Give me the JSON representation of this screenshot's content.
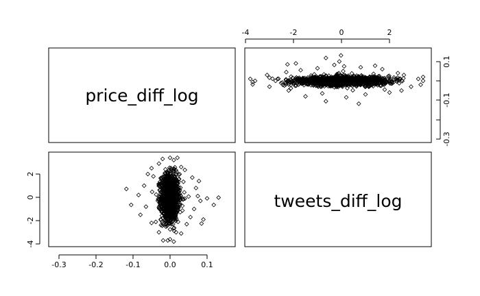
{
  "chart_data": {
    "type": "scatter",
    "title": "",
    "layout": "pairs-matrix",
    "variables": [
      "price_diff_log",
      "tweets_diff_log"
    ],
    "axes": {
      "price_diff_log": {
        "range": [
          -0.3,
          0.1
        ],
        "ticks": [
          -0.3,
          -0.2,
          -0.1,
          0.0,
          0.1
        ],
        "tick_labels": [
          "-0.3",
          "-0.2",
          "-0.1",
          "0.0",
          "0.1"
        ]
      },
      "tweets_diff_log": {
        "range": [
          -4,
          2
        ],
        "ticks": [
          -4,
          -2,
          0,
          2
        ],
        "tick_labels": [
          "-4",
          "-2",
          "0",
          "2"
        ]
      }
    },
    "panels": [
      {
        "position": "top-left",
        "kind": "label",
        "text": "price_diff_log"
      },
      {
        "position": "top-right",
        "kind": "scatter",
        "x": "tweets_diff_log",
        "y": "price_diff_log",
        "x_ticks_side": "top",
        "y_ticks_side": "right"
      },
      {
        "position": "bottom-left",
        "kind": "scatter",
        "x": "price_diff_log",
        "y": "tweets_diff_log",
        "x_ticks_side": "bottom",
        "y_ticks_side": "left"
      },
      {
        "position": "bottom-right",
        "kind": "label",
        "text": "tweets_diff_log"
      }
    ],
    "marker": "open-diamond",
    "grid": false,
    "points": [
      [
        0.131,
        -0.02
      ],
      [
        -0.118,
        0.72
      ],
      [
        -0.105,
        -0.65
      ],
      [
        0.118,
        -0.65
      ],
      [
        0.09,
        -1.9
      ],
      [
        0.085,
        -2.25
      ],
      [
        -0.02,
        3.3
      ],
      [
        0.0,
        3.4
      ],
      [
        0.01,
        3.2
      ],
      [
        -0.03,
        2.9
      ],
      [
        0.03,
        2.6
      ],
      [
        -0.05,
        2.5
      ],
      [
        0.04,
        2.35
      ],
      [
        -0.06,
        2.0
      ],
      [
        0.06,
        1.7
      ],
      [
        -0.07,
        1.0
      ],
      [
        0.07,
        0.8
      ],
      [
        -0.065,
        -0.8
      ],
      [
        0.065,
        -1.0
      ],
      [
        -0.05,
        -2.2
      ],
      [
        0.045,
        -2.3
      ],
      [
        -0.03,
        -3.0
      ],
      [
        0.03,
        -3.1
      ],
      [
        0.0,
        -3.6
      ],
      [
        0.01,
        -3.8
      ],
      [
        -0.085,
        0.2
      ],
      [
        0.082,
        -0.3
      ],
      [
        -0.08,
        -1.5
      ],
      [
        0.078,
        1.4
      ],
      [
        0.055,
        -1.7
      ],
      [
        -0.045,
        1.8
      ],
      [
        0.04,
        -0.11
      ],
      [
        0.075,
        0.11
      ],
      [
        -0.01,
        0.14
      ],
      [
        0.02,
        -0.12
      ],
      [
        0.1,
        -0.09
      ],
      [
        0.05,
        0.07
      ]
    ],
    "cluster": {
      "x_center": 0.0,
      "x_spread": 0.012,
      "y_center": 0.0,
      "y_spread": 1.0,
      "n": 1400
    }
  },
  "panel_labels": {
    "price": "price_diff_log",
    "tweets": "tweets_diff_log"
  },
  "tick_text": {
    "tweets_top": [
      "-4",
      "-2",
      "0",
      "2"
    ],
    "price_right": [
      "0.1",
      "-0.1",
      "-0.3"
    ],
    "tweets_left": [
      "2",
      "0",
      "-2",
      "-4"
    ],
    "price_bottom": [
      "-0.3",
      "-0.2",
      "-0.1",
      "0.0",
      "0.1"
    ]
  }
}
